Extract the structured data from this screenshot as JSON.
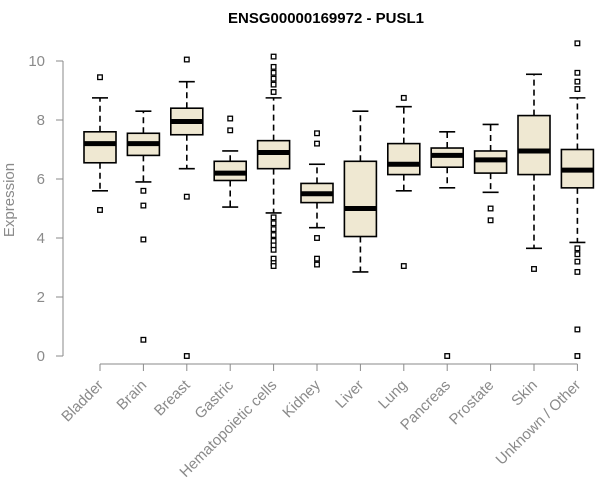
{
  "chart_data": {
    "type": "boxplot",
    "title": "ENSG00000169972 - PUSL1",
    "xlabel": "",
    "ylabel": "Expression",
    "ylim": [
      0,
      10.6
    ],
    "yticks": [
      0,
      2,
      4,
      6,
      8,
      10
    ],
    "grid": false,
    "box_fill": "#efe8d2",
    "categories": [
      "Bladder",
      "Brain",
      "Breast",
      "Gastric",
      "Hematopoietic cells",
      "Kidney",
      "Liver",
      "Lung",
      "Pancreas",
      "Prostate",
      "Skin",
      "Unknown / Other"
    ],
    "boxes": [
      {
        "whisker_low": 5.6,
        "q1": 6.55,
        "median": 7.2,
        "q3": 7.6,
        "whisker_high": 8.75,
        "outliers": [
          9.45,
          4.95
        ]
      },
      {
        "whisker_low": 5.9,
        "q1": 6.8,
        "median": 7.2,
        "q3": 7.55,
        "whisker_high": 8.3,
        "outliers": [
          5.6,
          5.1,
          3.95,
          0.55
        ]
      },
      {
        "whisker_low": 6.35,
        "q1": 7.5,
        "median": 7.95,
        "q3": 8.4,
        "whisker_high": 9.3,
        "outliers": [
          10.05,
          5.4,
          0.0
        ]
      },
      {
        "whisker_low": 5.05,
        "q1": 5.95,
        "median": 6.2,
        "q3": 6.6,
        "whisker_high": 6.95,
        "outliers": [
          8.05,
          7.65
        ]
      },
      {
        "whisker_low": 4.85,
        "q1": 6.35,
        "median": 6.9,
        "q3": 7.3,
        "whisker_high": 8.75,
        "outliers": [
          10.15,
          9.8,
          9.6,
          9.4,
          9.2,
          8.95,
          4.7,
          4.5,
          4.3,
          4.1,
          3.9,
          3.75,
          3.6,
          3.3,
          3.15,
          3.05
        ]
      },
      {
        "whisker_low": 4.35,
        "q1": 5.2,
        "median": 5.5,
        "q3": 5.85,
        "whisker_high": 6.5,
        "outliers": [
          7.55,
          7.2,
          4.0,
          3.3,
          3.1
        ]
      },
      {
        "whisker_low": 2.85,
        "q1": 4.05,
        "median": 5.0,
        "q3": 6.6,
        "whisker_high": 8.3,
        "outliers": []
      },
      {
        "whisker_low": 5.6,
        "q1": 6.15,
        "median": 6.5,
        "q3": 7.2,
        "whisker_high": 8.45,
        "outliers": [
          8.75,
          3.05
        ]
      },
      {
        "whisker_low": 5.7,
        "q1": 6.4,
        "median": 6.8,
        "q3": 7.05,
        "whisker_high": 7.6,
        "outliers": [
          0.0
        ]
      },
      {
        "whisker_low": 5.55,
        "q1": 6.2,
        "median": 6.65,
        "q3": 6.95,
        "whisker_high": 7.85,
        "outliers": [
          5.0,
          4.6
        ]
      },
      {
        "whisker_low": 3.65,
        "q1": 6.15,
        "median": 6.95,
        "q3": 8.15,
        "whisker_high": 9.55,
        "outliers": [
          2.95
        ]
      },
      {
        "whisker_low": 3.85,
        "q1": 5.7,
        "median": 6.3,
        "q3": 7.0,
        "whisker_high": 8.75,
        "outliers": [
          10.6,
          9.6,
          9.3,
          9.05,
          3.65,
          3.45,
          3.2,
          2.85,
          0.9,
          0.0
        ]
      }
    ]
  }
}
